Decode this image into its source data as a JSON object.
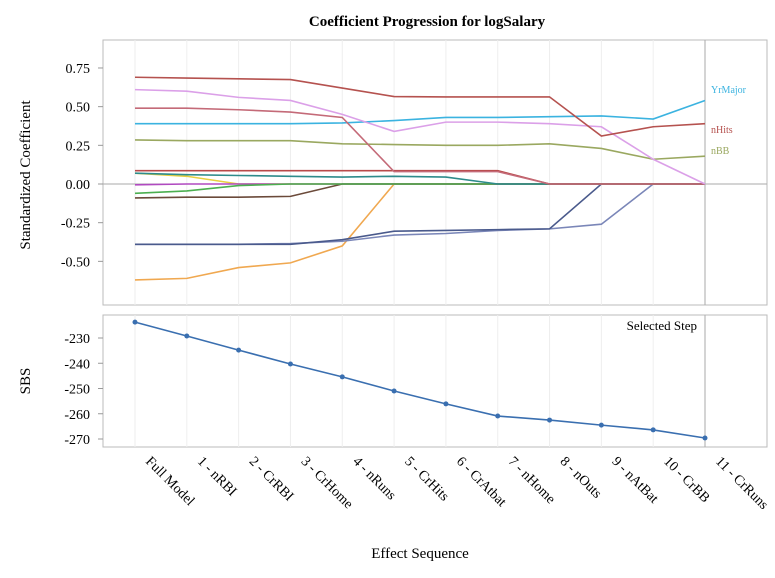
{
  "chart_data": [
    {
      "type": "line",
      "title": "Coefficient Progression for logSalary",
      "ylabel": "Standardized Coefficient",
      "ylim": [
        -0.8,
        0.95
      ],
      "yticks": [
        "0.75",
        "0.50",
        "0.25",
        "0.00",
        "-0.25",
        "-0.50"
      ],
      "ytick_values": [
        0.75,
        0.5,
        0.25,
        0,
        -0.25,
        -0.5
      ],
      "categories": [
        "Full Model",
        "1 - nRBI",
        "2 - CrRBI",
        "3 - CrHome",
        "4 - nRuns",
        "5 - CrHits",
        "6 - CrAtbat",
        "7 - nHome",
        "8 - nOuts",
        "9 - nAtBat",
        "10 - CrBB",
        "11 - CrRuns"
      ],
      "selected_step_index": 11,
      "series": [
        {
          "name": "nHits",
          "label": "nHits",
          "color": "#b5524f",
          "values": [
            0.69,
            0.685,
            0.68,
            0.675,
            0.62,
            0.565,
            0.563,
            0.563,
            0.563,
            0.31,
            0.37,
            0.39
          ]
        },
        {
          "name": "violet",
          "label": "",
          "color": "#dba0e8",
          "values": [
            0.61,
            0.6,
            0.56,
            0.54,
            0.45,
            0.34,
            0.4,
            0.4,
            0.39,
            0.37,
            0.16,
            0.0
          ]
        },
        {
          "name": "red2",
          "label": "",
          "color": "#c46a78",
          "values": [
            0.49,
            0.49,
            0.48,
            0.465,
            0.43,
            0.08,
            0.08,
            0.08,
            0.0,
            0.0,
            0.0,
            0.0
          ]
        },
        {
          "name": "YrMajor",
          "label": "YrMajor",
          "color": "#3bb3e0",
          "values": [
            0.39,
            0.39,
            0.39,
            0.39,
            0.395,
            0.41,
            0.43,
            0.43,
            0.435,
            0.44,
            0.42,
            0.54
          ]
        },
        {
          "name": "nBB",
          "label": "nBB",
          "color": "#9aa860",
          "values": [
            0.285,
            0.28,
            0.28,
            0.28,
            0.26,
            0.255,
            0.25,
            0.25,
            0.26,
            0.23,
            0.16,
            0.18
          ]
        },
        {
          "name": "red3",
          "label": "",
          "color": "#b84a4a",
          "values": [
            0.086,
            0.086,
            0.086,
            0.086,
            0.086,
            0.086,
            0.086,
            0.086,
            0.0,
            0.0,
            0.0,
            0.0
          ]
        },
        {
          "name": "teal",
          "label": "",
          "color": "#2e8b8b",
          "values": [
            0.07,
            0.06,
            0.055,
            0.05,
            0.045,
            0.05,
            0.045,
            0.0,
            0.0,
            0.0,
            0.0,
            0.0
          ]
        },
        {
          "name": "green",
          "label": "",
          "color": "#4caf50",
          "values": [
            -0.06,
            -0.045,
            -0.01,
            0.0,
            0.0,
            0.0,
            0.0,
            0.0,
            0.0,
            0.0,
            0.0,
            0.0
          ]
        },
        {
          "name": "brown",
          "label": "",
          "color": "#6b4a3a",
          "values": [
            -0.09,
            -0.085,
            -0.085,
            -0.08,
            0.0,
            0.0,
            0.0,
            0.0,
            0.0,
            0.0,
            0.0,
            0.0
          ]
        },
        {
          "name": "purple",
          "label": "",
          "color": "#b04ac0",
          "values": [
            -0.005,
            0.0,
            0.0,
            0.0,
            0.0,
            0.0,
            0.0,
            0.0,
            0.0,
            0.0,
            0.0,
            0.0
          ]
        },
        {
          "name": "navy1",
          "label": "",
          "color": "#4a5a8c",
          "values": [
            -0.39,
            -0.39,
            -0.39,
            -0.39,
            -0.36,
            -0.305,
            -0.3,
            -0.295,
            -0.29,
            0.0,
            0.0,
            0.0
          ]
        },
        {
          "name": "navy2",
          "label": "",
          "color": "#7a86b8",
          "values": [
            -0.39,
            -0.39,
            -0.39,
            -0.385,
            -0.37,
            -0.33,
            -0.32,
            -0.3,
            -0.29,
            -0.26,
            0.0,
            0.0
          ]
        },
        {
          "name": "orange",
          "label": "",
          "color": "#f0a850",
          "values": [
            -0.62,
            -0.61,
            -0.54,
            -0.51,
            -0.4,
            0.0,
            0.0,
            0.0,
            0.0,
            0.0,
            0.0,
            0.0
          ]
        },
        {
          "name": "yellow",
          "label": "",
          "color": "#e8d040",
          "values": [
            0.07,
            0.05,
            0.0,
            0.0,
            0.0,
            0.0,
            0.0,
            0.0,
            0.0,
            0.0,
            0.0,
            0.0
          ]
        }
      ]
    },
    {
      "type": "line",
      "ylabel": "SBS",
      "xlabel": "Effect Sequence",
      "ylim": [
        -273,
        -220
      ],
      "yticks": [
        "-230",
        "-240",
        "-250",
        "-260",
        "-270"
      ],
      "ytick_values": [
        -230,
        -240,
        -250,
        -260,
        -270
      ],
      "annotation": "Selected Step",
      "color": "#3a6fb0",
      "values": [
        -223.7,
        -229.2,
        -234.8,
        -240.3,
        -245.4,
        -251.0,
        -256.1,
        -260.9,
        -262.5,
        -264.5,
        -266.4,
        -269.6
      ]
    }
  ]
}
